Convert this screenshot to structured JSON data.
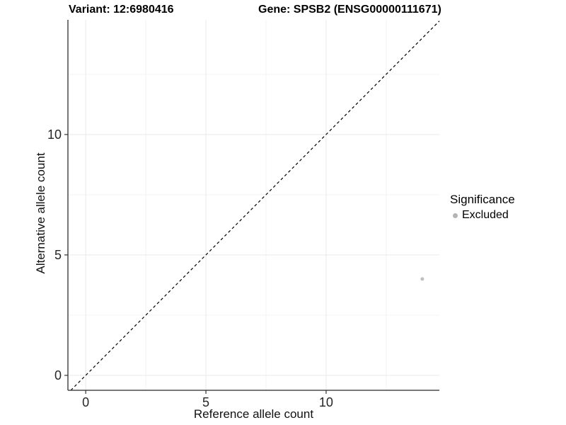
{
  "chart_data": {
    "type": "scatter",
    "titles": {
      "variant": "Variant: 12:6980416",
      "gene": "Gene: SPSB2 (ENSG00000111671)"
    },
    "xlabel": "Reference allele count",
    "ylabel": "Alternative allele count",
    "xlim": [
      -0.74,
      14.71
    ],
    "ylim": [
      -0.62,
      14.76
    ],
    "x_major_ticks": [
      0,
      5,
      10
    ],
    "y_major_ticks": [
      0,
      5,
      10
    ],
    "x_minor_ticks": [
      2.5,
      7.5,
      12.5
    ],
    "y_minor_ticks": [
      2.5,
      7.5,
      12.5
    ],
    "grid": true,
    "reference_line": {
      "slope": 1,
      "intercept": 0,
      "style": "dashed",
      "color": "#000000"
    },
    "series": [
      {
        "name": "Excluded",
        "color": "#bfbfbf",
        "point_radius": 2.5,
        "points": [
          {
            "x": 14,
            "y": 4
          }
        ]
      }
    ],
    "legend": {
      "position": "right",
      "title": "Significance",
      "items": [
        {
          "label": "Excluded",
          "color": "#b4b4b4"
        }
      ]
    },
    "colors": {
      "grid_major": "#e9e9e9",
      "grid_minor": "#f3f3f3",
      "axis_line": "#4a4a4a",
      "tick_mark": "#333333",
      "tick_text": "#262626",
      "title_text": "#000000"
    }
  }
}
